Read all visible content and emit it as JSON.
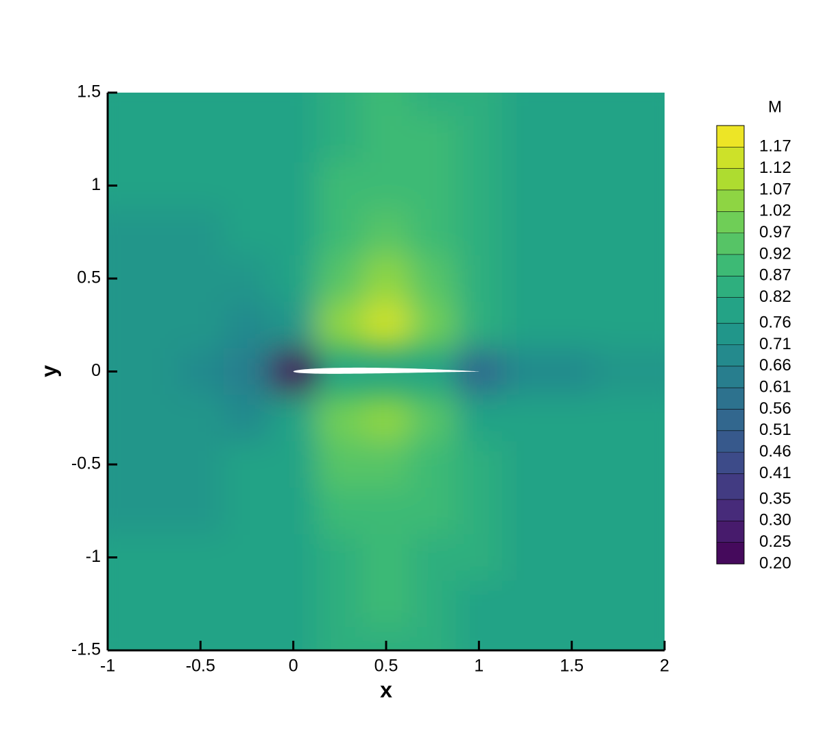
{
  "chart_data": {
    "type": "contour",
    "xlabel": "x",
    "ylabel": "y",
    "colorbar_title": "M",
    "colormap": "viridis",
    "xlim": [
      -1,
      2
    ],
    "ylim": [
      -1.5,
      1.5
    ],
    "xticks": [
      -1,
      -0.5,
      0,
      0.5,
      1,
      1.5,
      2
    ],
    "yticks": [
      -1.5,
      -1,
      -0.5,
      0,
      0.5,
      1,
      1.5
    ],
    "clim": [
      0.2,
      1.22
    ],
    "levels": [
      {
        "value": 0.2,
        "label": "0.20"
      },
      0.25,
      {
        "value": 0.3,
        "label": "0.30"
      },
      0.35,
      0.41,
      0.46,
      0.51,
      0.56,
      0.61,
      0.66,
      0.71,
      0.76,
      0.82,
      0.87,
      0.92,
      0.97,
      1.02,
      1.07,
      1.12,
      1.17
    ],
    "x": [
      -1,
      -0.75,
      -0.5,
      -0.25,
      0,
      0.25,
      0.5,
      0.75,
      1,
      1.25,
      1.5,
      1.75,
      2
    ],
    "y": [
      1.5,
      1.25,
      1,
      0.75,
      0.5,
      0.25,
      0,
      -0.25,
      -0.5,
      -0.75,
      -1,
      -1.25,
      -1.5
    ],
    "z": [
      [
        0.77,
        0.77,
        0.78,
        0.79,
        0.81,
        0.85,
        0.88,
        0.86,
        0.82,
        0.8,
        0.79,
        0.79,
        0.79
      ],
      [
        0.77,
        0.77,
        0.78,
        0.79,
        0.81,
        0.86,
        0.89,
        0.87,
        0.82,
        0.8,
        0.79,
        0.79,
        0.79
      ],
      [
        0.76,
        0.76,
        0.77,
        0.78,
        0.81,
        0.87,
        0.91,
        0.88,
        0.83,
        0.8,
        0.79,
        0.78,
        0.78
      ],
      [
        0.74,
        0.74,
        0.75,
        0.77,
        0.81,
        0.89,
        0.95,
        0.9,
        0.84,
        0.8,
        0.79,
        0.78,
        0.78
      ],
      [
        0.73,
        0.73,
        0.74,
        0.75,
        0.8,
        0.93,
        1.02,
        0.94,
        0.84,
        0.8,
        0.78,
        0.78,
        0.77
      ],
      [
        0.73,
        0.72,
        0.71,
        0.7,
        0.74,
        1.02,
        1.14,
        1.0,
        0.82,
        0.77,
        0.76,
        0.76,
        0.76
      ],
      [
        0.73,
        0.72,
        0.69,
        0.62,
        0.2,
        null,
        null,
        null,
        0.55,
        0.66,
        0.7,
        0.73,
        0.74
      ],
      [
        0.73,
        0.72,
        0.71,
        0.7,
        0.76,
        1.0,
        1.02,
        0.93,
        0.8,
        0.76,
        0.76,
        0.76,
        0.76
      ],
      [
        0.73,
        0.73,
        0.74,
        0.76,
        0.8,
        0.92,
        0.95,
        0.9,
        0.83,
        0.8,
        0.78,
        0.77,
        0.77
      ],
      [
        0.74,
        0.74,
        0.75,
        0.77,
        0.81,
        0.88,
        0.91,
        0.88,
        0.83,
        0.8,
        0.79,
        0.78,
        0.78
      ],
      [
        0.76,
        0.76,
        0.77,
        0.78,
        0.81,
        0.86,
        0.88,
        0.86,
        0.82,
        0.8,
        0.79,
        0.78,
        0.78
      ],
      [
        0.77,
        0.77,
        0.78,
        0.79,
        0.81,
        0.85,
        0.87,
        0.85,
        0.81,
        0.8,
        0.79,
        0.79,
        0.79
      ],
      [
        0.77,
        0.77,
        0.78,
        0.79,
        0.81,
        0.84,
        0.86,
        0.84,
        0.81,
        0.8,
        0.79,
        0.79,
        0.79
      ]
    ]
  }
}
